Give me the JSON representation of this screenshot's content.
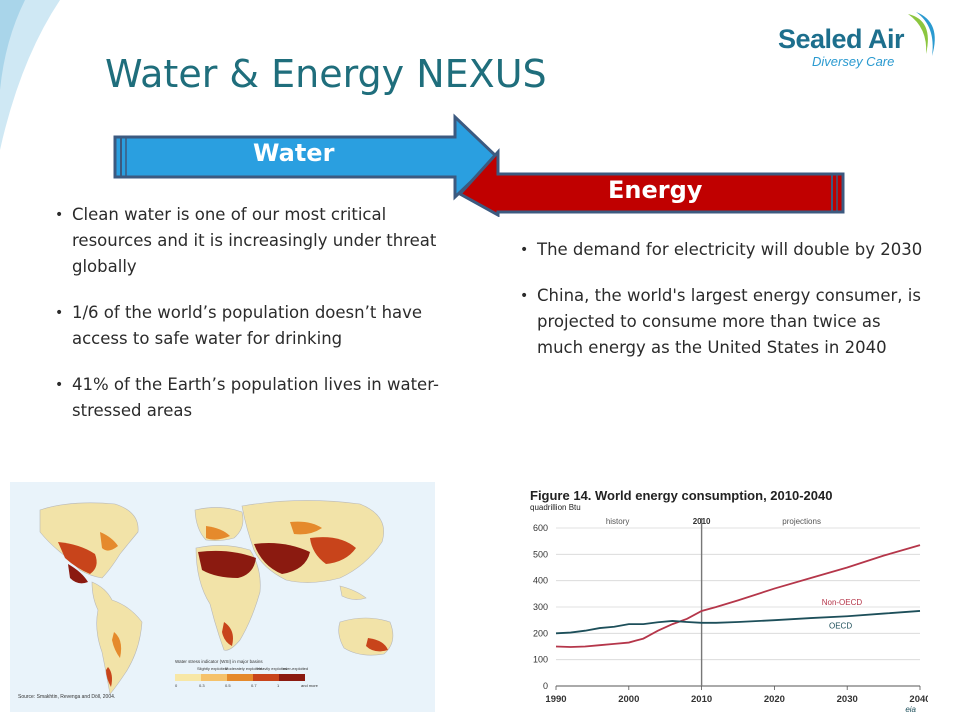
{
  "header": {
    "title": "Water & Energy NEXUS",
    "logo_main": "Sealed Air",
    "logo_sub": "Diversey Care"
  },
  "arrows": {
    "water_label": "Water",
    "energy_label": "Energy",
    "water_color": "#2a9fe0",
    "energy_color": "#c00000",
    "border_color": "#3c5a80"
  },
  "water_points": [
    "Clean water is one of our most critical resources and it is increasingly under threat globally",
    "1/6 of the world’s population doesn’t have access to safe water for drinking",
    "41% of the Earth’s population lives in water-stressed areas"
  ],
  "energy_points": [
    "The demand for electricity will double by 2030",
    "China, the world's largest energy consumer, is projected to consume more than twice as much energy as the United States in 2040"
  ],
  "map": {
    "legend_title": "Water stress indicator (WSI) in major basins",
    "legend_categories": [
      "Slightly exploited",
      "Moderately exploited",
      "Heavily exploited",
      "over-exploited"
    ],
    "legend_ticks": [
      "0",
      "0.3",
      "0.5",
      "0.7",
      "1",
      "and more"
    ],
    "legend_colors": [
      "#f7e7a6",
      "#f5c26b",
      "#e58a2c",
      "#c8441b",
      "#8b1a10"
    ],
    "source": "Source: Smakhtin, Revenga and Döll, 2004."
  },
  "chart_data": {
    "type": "line",
    "title": "Figure 14. World energy consumption, 2010-2040",
    "ylabel": "quadrillion Btu",
    "xlim": [
      1990,
      2040
    ],
    "ylim": [
      0,
      600
    ],
    "x_ticks": [
      "1990",
      "2000",
      "2010",
      "2020",
      "2030",
      "2040"
    ],
    "y_ticks": [
      "0",
      "100",
      "200",
      "300",
      "400",
      "500",
      "600"
    ],
    "divider_year": 2010,
    "divider_label": "2010",
    "region_labels": [
      "history",
      "projections"
    ],
    "series": [
      {
        "name": "Non-OECD",
        "color": "#b5364a",
        "x": [
          1990,
          1992,
          1994,
          1996,
          1998,
          2000,
          2002,
          2004,
          2006,
          2008,
          2010,
          2012,
          2015,
          2020,
          2025,
          2030,
          2035,
          2040
        ],
        "y": [
          150,
          148,
          150,
          155,
          160,
          165,
          180,
          210,
          235,
          255,
          285,
          300,
          325,
          370,
          410,
          450,
          495,
          535
        ]
      },
      {
        "name": "OECD",
        "color": "#1d4f5a",
        "x": [
          1990,
          1992,
          1994,
          1996,
          1998,
          2000,
          2002,
          2004,
          2006,
          2008,
          2010,
          2012,
          2015,
          2020,
          2025,
          2030,
          2035,
          2040
        ],
        "y": [
          200,
          203,
          210,
          220,
          225,
          235,
          235,
          242,
          247,
          243,
          240,
          240,
          243,
          250,
          258,
          265,
          275,
          285
        ]
      }
    ],
    "source": "eia"
  },
  "footer": {
    "page": ""
  }
}
